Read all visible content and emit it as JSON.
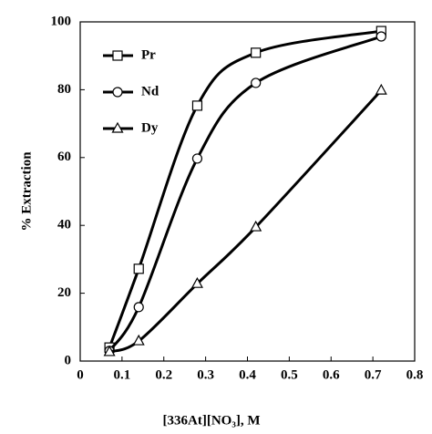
{
  "chart_data": {
    "type": "line",
    "x_label": "[336At][NO₃], M",
    "y_label": "% Extraction",
    "xlim": [
      0,
      0.8
    ],
    "xticks": [
      0,
      0.1,
      0.2,
      0.3,
      0.4,
      0.5,
      0.6,
      0.7,
      0.8
    ],
    "ylim": [
      0,
      100
    ],
    "yticks": [
      0,
      20,
      40,
      60,
      80,
      100
    ],
    "legend": "upper left",
    "series": [
      {
        "name": "Pr",
        "color": "#000000",
        "marker": "square",
        "x": [
          0.07,
          0.14,
          0.28,
          0.42,
          0.72
        ],
        "values": [
          4.0,
          27.2,
          75.3,
          90.9,
          97.3
        ]
      },
      {
        "name": "Nd",
        "color": "#000000",
        "marker": "circle",
        "x": [
          0.07,
          0.14,
          0.28,
          0.42,
          0.72
        ],
        "values": [
          3.0,
          15.9,
          59.7,
          82.0,
          95.7
        ]
      },
      {
        "name": "Dy",
        "color": "#000000",
        "marker": "triangle",
        "x": [
          0.07,
          0.14,
          0.28,
          0.42,
          0.72
        ],
        "values": [
          2.7,
          5.9,
          22.8,
          39.5,
          79.8
        ]
      }
    ]
  }
}
